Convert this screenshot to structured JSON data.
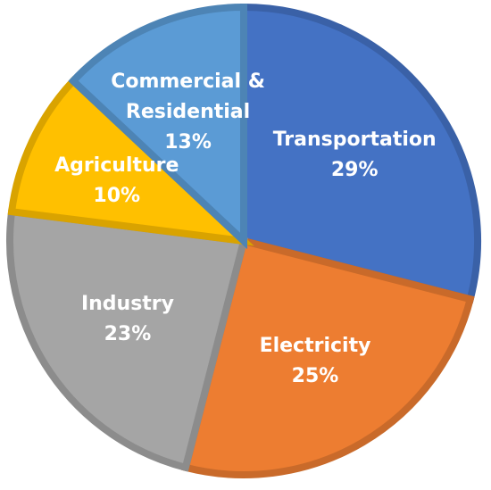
{
  "chart_data": {
    "type": "pie",
    "categories": [
      "Transportation",
      "Electricity",
      "Industry",
      "Agriculture",
      "Commercial & Residential"
    ],
    "values": [
      29,
      25,
      23,
      10,
      13
    ],
    "value_labels": [
      "29%",
      "25%",
      "23%",
      "10%",
      "13%"
    ],
    "colors": [
      "#4472c4",
      "#ed7d31",
      "#a5a5a5",
      "#ffc000",
      "#5b9bd5"
    ]
  }
}
